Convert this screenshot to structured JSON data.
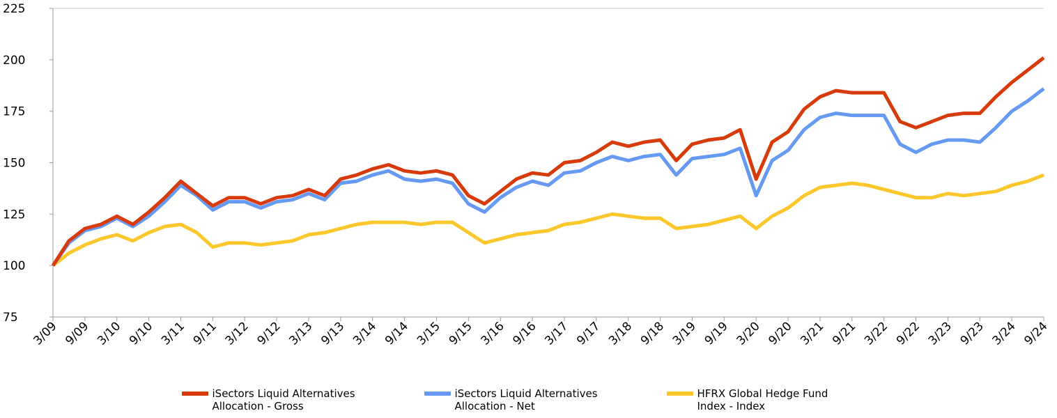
{
  "chart_data": {
    "type": "line",
    "categories": [
      "3/09",
      null,
      "9/09",
      null,
      "3/10",
      null,
      "9/10",
      null,
      "3/11",
      null,
      "9/11",
      null,
      "3/12",
      null,
      "9/12",
      null,
      "3/13",
      null,
      "9/13",
      null,
      "3/14",
      null,
      "9/14",
      null,
      "3/15",
      null,
      "9/15",
      null,
      "3/16",
      null,
      "9/16",
      null,
      "3/17",
      null,
      "9/17",
      null,
      "3/18",
      null,
      "9/18",
      null,
      "3/19",
      null,
      "9/19",
      null,
      "3/20",
      null,
      "9/20",
      null,
      "3/21",
      null,
      "9/21",
      null,
      "3/22",
      null,
      "9/22",
      null,
      "3/23",
      null,
      "9/23",
      null,
      "3/24",
      null,
      "9/24"
    ],
    "series": [
      {
        "name": "iSectors Liquid Alternatives Allocation - Gross",
        "color": "#d83b0b",
        "values": [
          100,
          112,
          118,
          120,
          124,
          120,
          126,
          133,
          141,
          135,
          129,
          133,
          133,
          130,
          133,
          134,
          137,
          134,
          142,
          144,
          147,
          149,
          146,
          145,
          146,
          144,
          134,
          130,
          136,
          142,
          145,
          144,
          150,
          151,
          155,
          160,
          158,
          160,
          161,
          151,
          159,
          161,
          162,
          166,
          142,
          160,
          165,
          176,
          182,
          185,
          184,
          184,
          184,
          170,
          167,
          170,
          173,
          174,
          174,
          182,
          189,
          195,
          201
        ]
      },
      {
        "name": "iSectors Liquid Alternatives Allocation - Net",
        "color": "#6599f2",
        "values": [
          100,
          111,
          117,
          119,
          123,
          119,
          124,
          131,
          139,
          134,
          127,
          131,
          131,
          128,
          131,
          132,
          135,
          132,
          140,
          141,
          144,
          146,
          142,
          141,
          142,
          140,
          130,
          126,
          133,
          138,
          141,
          139,
          145,
          146,
          150,
          153,
          151,
          153,
          154,
          144,
          152,
          153,
          154,
          157,
          134,
          151,
          156,
          166,
          172,
          174,
          173,
          173,
          173,
          159,
          155,
          159,
          161,
          161,
          160,
          167,
          175,
          180,
          186
        ]
      },
      {
        "name": "HFRX Global Hedge Fund Index - Index",
        "color": "#fcc72a",
        "values": [
          100,
          106,
          110,
          113,
          115,
          112,
          116,
          119,
          120,
          116,
          109,
          111,
          111,
          110,
          111,
          112,
          115,
          116,
          118,
          120,
          121,
          121,
          121,
          120,
          121,
          121,
          116,
          111,
          113,
          115,
          116,
          117,
          120,
          121,
          123,
          125,
          124,
          123,
          123,
          118,
          119,
          120,
          122,
          124,
          118,
          124,
          128,
          134,
          138,
          139,
          140,
          139,
          137,
          135,
          133,
          133,
          135,
          134,
          135,
          136,
          139,
          141,
          144
        ]
      }
    ],
    "ylim": [
      75,
      225
    ],
    "yticks": [
      75,
      100,
      125,
      150,
      175,
      200,
      225
    ],
    "legend": "bottom"
  }
}
